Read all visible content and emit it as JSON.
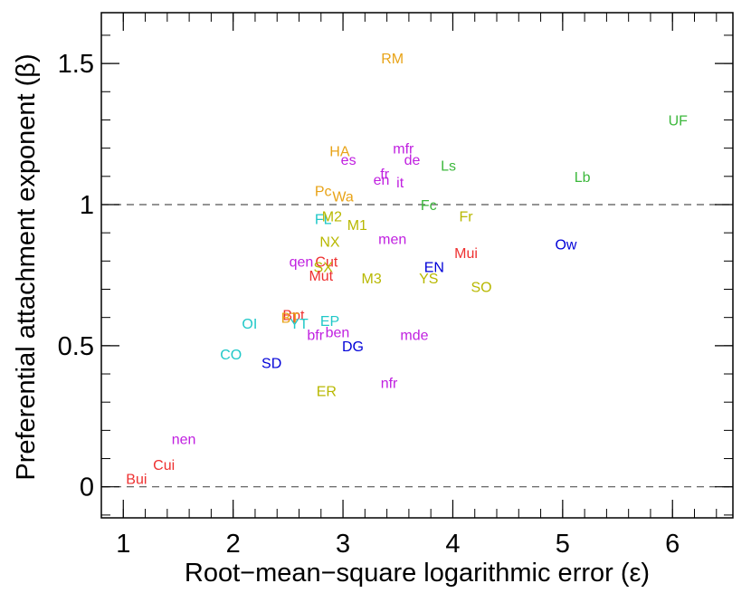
{
  "chart_data": {
    "type": "scatter",
    "title": "",
    "xlabel": "Root−mean−square logarithmic error (ε)",
    "ylabel": "Preferential attachment exponent (β)",
    "xlim": [
      0.8,
      6.55
    ],
    "ylim": [
      -0.11,
      1.68
    ],
    "xticks": [
      1,
      2,
      3,
      4,
      5,
      6
    ],
    "xtick_labels": [
      "1",
      "2",
      "3",
      "4",
      "5",
      "6"
    ],
    "yticks": [
      0,
      0.5,
      1,
      1.5
    ],
    "ytick_labels": [
      "0",
      "0.5",
      "1",
      "1.5"
    ],
    "reference_lines": [
      0,
      1
    ],
    "grid": false,
    "legend": "none",
    "points": [
      {
        "label": "RM",
        "x": 3.45,
        "y": 1.52,
        "color": "#e8a317"
      },
      {
        "label": "UF",
        "x": 6.05,
        "y": 1.3,
        "color": "#3cb83c"
      },
      {
        "label": "HA",
        "x": 2.97,
        "y": 1.19,
        "color": "#e8a317"
      },
      {
        "label": "es",
        "x": 3.05,
        "y": 1.16,
        "color": "#c020e0"
      },
      {
        "label": "mfr",
        "x": 3.55,
        "y": 1.2,
        "color": "#c020e0"
      },
      {
        "label": "de",
        "x": 3.63,
        "y": 1.16,
        "color": "#c020e0"
      },
      {
        "label": "Ls",
        "x": 3.96,
        "y": 1.14,
        "color": "#3cb83c"
      },
      {
        "label": "fr",
        "x": 3.38,
        "y": 1.11,
        "color": "#c020e0"
      },
      {
        "label": "en",
        "x": 3.35,
        "y": 1.09,
        "color": "#c020e0"
      },
      {
        "label": "it",
        "x": 3.52,
        "y": 1.08,
        "color": "#c020e0"
      },
      {
        "label": "Lb",
        "x": 5.18,
        "y": 1.1,
        "color": "#3cb83c"
      },
      {
        "label": "Pc",
        "x": 2.82,
        "y": 1.05,
        "color": "#e8a317"
      },
      {
        "label": "Wa",
        "x": 3.0,
        "y": 1.03,
        "color": "#e8a317"
      },
      {
        "label": "Fc",
        "x": 3.78,
        "y": 1.0,
        "color": "#3cb83c"
      },
      {
        "label": "FL",
        "x": 2.82,
        "y": 0.95,
        "color": "#20c8c8"
      },
      {
        "label": "M2",
        "x": 2.9,
        "y": 0.96,
        "color": "#b8b800"
      },
      {
        "label": "Fr",
        "x": 4.12,
        "y": 0.96,
        "color": "#b8b800"
      },
      {
        "label": "M1",
        "x": 3.13,
        "y": 0.93,
        "color": "#b8b800"
      },
      {
        "label": "NX",
        "x": 2.88,
        "y": 0.87,
        "color": "#b8b800"
      },
      {
        "label": "men",
        "x": 3.45,
        "y": 0.88,
        "color": "#c020e0"
      },
      {
        "label": "Ow",
        "x": 5.03,
        "y": 0.86,
        "color": "#0000d8"
      },
      {
        "label": "Mui",
        "x": 4.12,
        "y": 0.83,
        "color": "#ee3030"
      },
      {
        "label": "qen",
        "x": 2.62,
        "y": 0.8,
        "color": "#c020e0"
      },
      {
        "label": "Cut",
        "x": 2.85,
        "y": 0.8,
        "color": "#ee3030"
      },
      {
        "label": "SX",
        "x": 2.82,
        "y": 0.78,
        "color": "#b8b800"
      },
      {
        "label": "EN",
        "x": 3.83,
        "y": 0.78,
        "color": "#0000d8"
      },
      {
        "label": "Mut",
        "x": 2.8,
        "y": 0.75,
        "color": "#ee3030"
      },
      {
        "label": "M3",
        "x": 3.26,
        "y": 0.74,
        "color": "#b8b800"
      },
      {
        "label": "YS",
        "x": 3.78,
        "y": 0.74,
        "color": "#b8b800"
      },
      {
        "label": "SO",
        "x": 4.26,
        "y": 0.71,
        "color": "#b8b800"
      },
      {
        "label": "Bpt",
        "x": 2.55,
        "y": 0.61,
        "color": "#ee3030"
      },
      {
        "label": "BT",
        "x": 2.52,
        "y": 0.6,
        "color": "#e8a317"
      },
      {
        "label": "EP",
        "x": 2.88,
        "y": 0.59,
        "color": "#20c8c8"
      },
      {
        "label": "OI",
        "x": 2.15,
        "y": 0.58,
        "color": "#20c8c8"
      },
      {
        "label": "YT",
        "x": 2.6,
        "y": 0.58,
        "color": "#20c8c8"
      },
      {
        "label": "ben",
        "x": 2.95,
        "y": 0.55,
        "color": "#c020e0"
      },
      {
        "label": "bfr",
        "x": 2.75,
        "y": 0.54,
        "color": "#c020e0"
      },
      {
        "label": "mde",
        "x": 3.65,
        "y": 0.54,
        "color": "#c020e0"
      },
      {
        "label": "DG",
        "x": 3.09,
        "y": 0.5,
        "color": "#0000d8"
      },
      {
        "label": "CO",
        "x": 1.98,
        "y": 0.47,
        "color": "#20c8c8"
      },
      {
        "label": "SD",
        "x": 2.35,
        "y": 0.44,
        "color": "#0000d8"
      },
      {
        "label": "nfr",
        "x": 3.42,
        "y": 0.37,
        "color": "#c020e0"
      },
      {
        "label": "ER",
        "x": 2.85,
        "y": 0.34,
        "color": "#b8b800"
      },
      {
        "label": "nen",
        "x": 1.55,
        "y": 0.17,
        "color": "#c020e0"
      },
      {
        "label": "Cui",
        "x": 1.37,
        "y": 0.08,
        "color": "#ee3030"
      },
      {
        "label": "Bui",
        "x": 1.12,
        "y": 0.03,
        "color": "#ee3030"
      }
    ]
  }
}
